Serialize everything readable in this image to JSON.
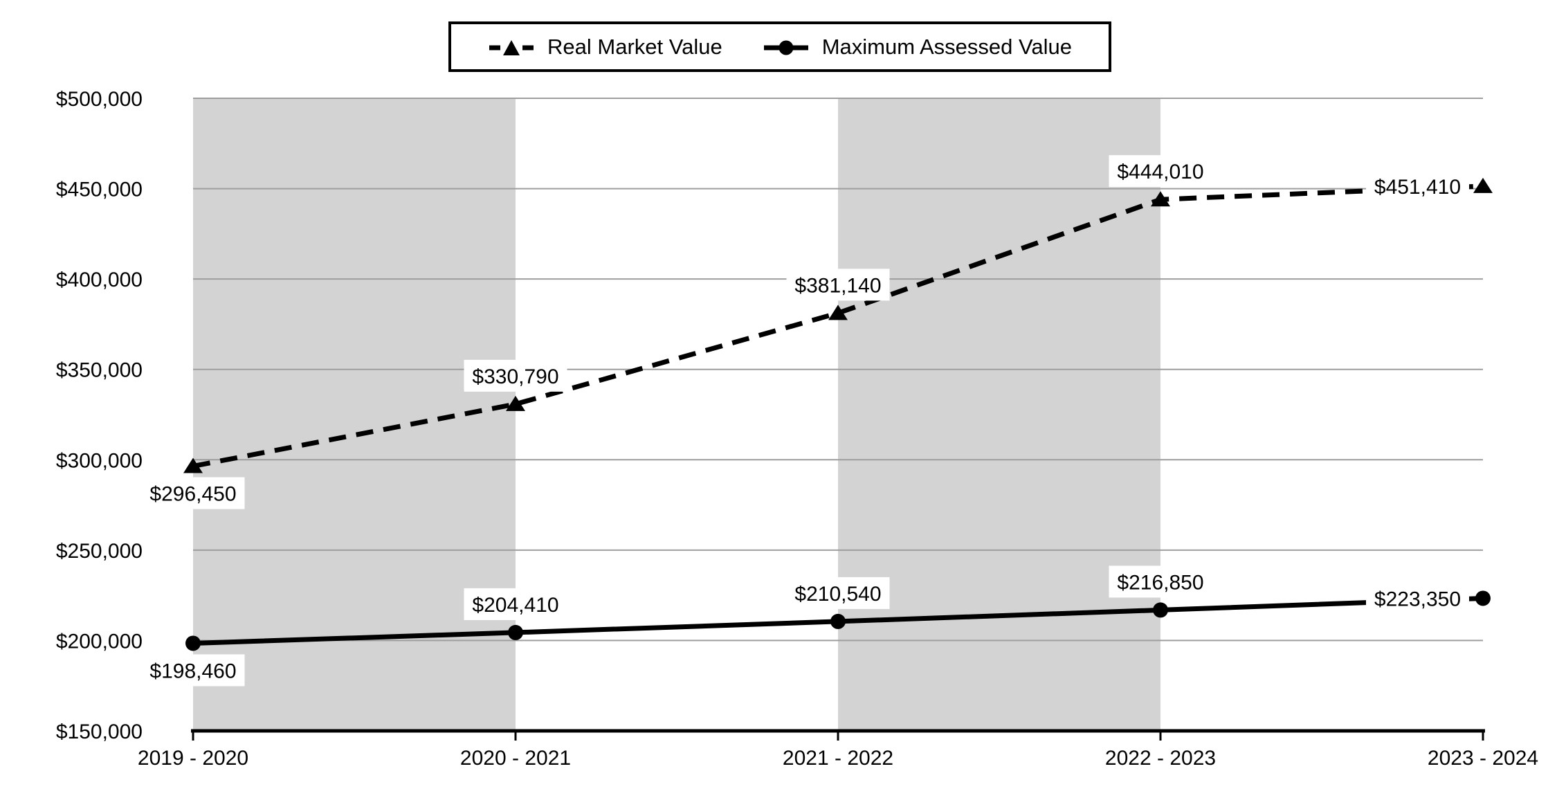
{
  "figure": {
    "background_color": "#ffffff",
    "text_color": "#000000"
  },
  "legend": {
    "position": "top-center",
    "items": [
      {
        "label": "Real Market Value",
        "marker": "triangle",
        "line_style": "dashed"
      },
      {
        "label": "Maximum Assessed Value",
        "marker": "circle",
        "line_style": "solid"
      }
    ]
  },
  "chart_data": {
    "type": "line",
    "categories": [
      "2019 - 2020",
      "2020 - 2021",
      "2021 - 2022",
      "2022 - 2023",
      "2023 - 2024"
    ],
    "series": [
      {
        "name": "Real Market Value",
        "line_style": "dashed",
        "marker": "triangle",
        "color": "#000000",
        "values": [
          296450,
          330790,
          381140,
          444010,
          451410
        ],
        "data_labels": [
          "$296,450",
          "$330,790",
          "$381,140",
          "$444,010",
          "$451,410"
        ],
        "label_placement": [
          "below",
          "above",
          "above",
          "above",
          "left"
        ]
      },
      {
        "name": "Maximum Assessed Value",
        "line_style": "solid",
        "marker": "circle",
        "color": "#000000",
        "values": [
          198460,
          204410,
          210540,
          216850,
          223350
        ],
        "data_labels": [
          "$198,460",
          "$204,410",
          "$210,540",
          "$216,850",
          "$223,350"
        ],
        "label_placement": [
          "below",
          "above",
          "above",
          "above",
          "left"
        ]
      }
    ],
    "ylim": [
      150000,
      500000
    ],
    "ytick_step": 50000,
    "ytick_labels": [
      "$150,000",
      "$200,000",
      "$250,000",
      "$300,000",
      "$350,000",
      "$400,000",
      "$450,000",
      "$500,000"
    ],
    "grid": true,
    "gridline_color": "#9e9e9e",
    "axis_color": "#000000",
    "shaded_bands": [
      [
        0,
        1
      ],
      [
        2,
        3
      ]
    ],
    "band_color": "#d3d3d3",
    "data_label_bg": "#ffffff",
    "legend_position": "top-center"
  }
}
